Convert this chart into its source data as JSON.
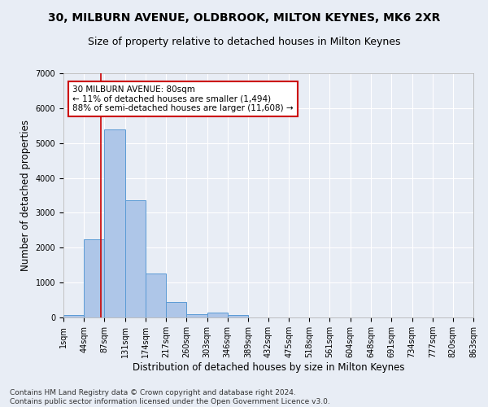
{
  "title_line1": "30, MILBURN AVENUE, OLDBROOK, MILTON KEYNES, MK6 2XR",
  "title_line2": "Size of property relative to detached houses in Milton Keynes",
  "xlabel": "Distribution of detached houses by size in Milton Keynes",
  "ylabel": "Number of detached properties",
  "footer_line1": "Contains HM Land Registry data © Crown copyright and database right 2024.",
  "footer_line2": "Contains public sector information licensed under the Open Government Licence v3.0.",
  "bin_edges": [
    1,
    44,
    87,
    131,
    174,
    217,
    260,
    303,
    346,
    389,
    432,
    475,
    518,
    561,
    604,
    648,
    691,
    734,
    777,
    820,
    863
  ],
  "bar_heights": [
    75,
    2250,
    5400,
    3350,
    1250,
    450,
    100,
    150,
    75,
    0,
    0,
    0,
    0,
    0,
    0,
    0,
    0,
    0,
    0,
    0
  ],
  "bar_color": "#aec6e8",
  "bar_edge_color": "#5b9bd5",
  "vline_x": 80,
  "vline_color": "#cc0000",
  "annotation_text": "30 MILBURN AVENUE: 80sqm\n← 11% of detached houses are smaller (1,494)\n88% of semi-detached houses are larger (11,608) →",
  "annotation_box_color": "#ffffff",
  "annotation_box_edge": "#cc0000",
  "ylim": [
    0,
    7000
  ],
  "yticks": [
    0,
    1000,
    2000,
    3000,
    4000,
    5000,
    6000,
    7000
  ],
  "background_color": "#e8edf5",
  "grid_color": "#ffffff",
  "title_fontsize": 10,
  "subtitle_fontsize": 9,
  "axis_label_fontsize": 8.5,
  "tick_fontsize": 7,
  "annotation_fontsize": 7.5,
  "footer_fontsize": 6.5
}
